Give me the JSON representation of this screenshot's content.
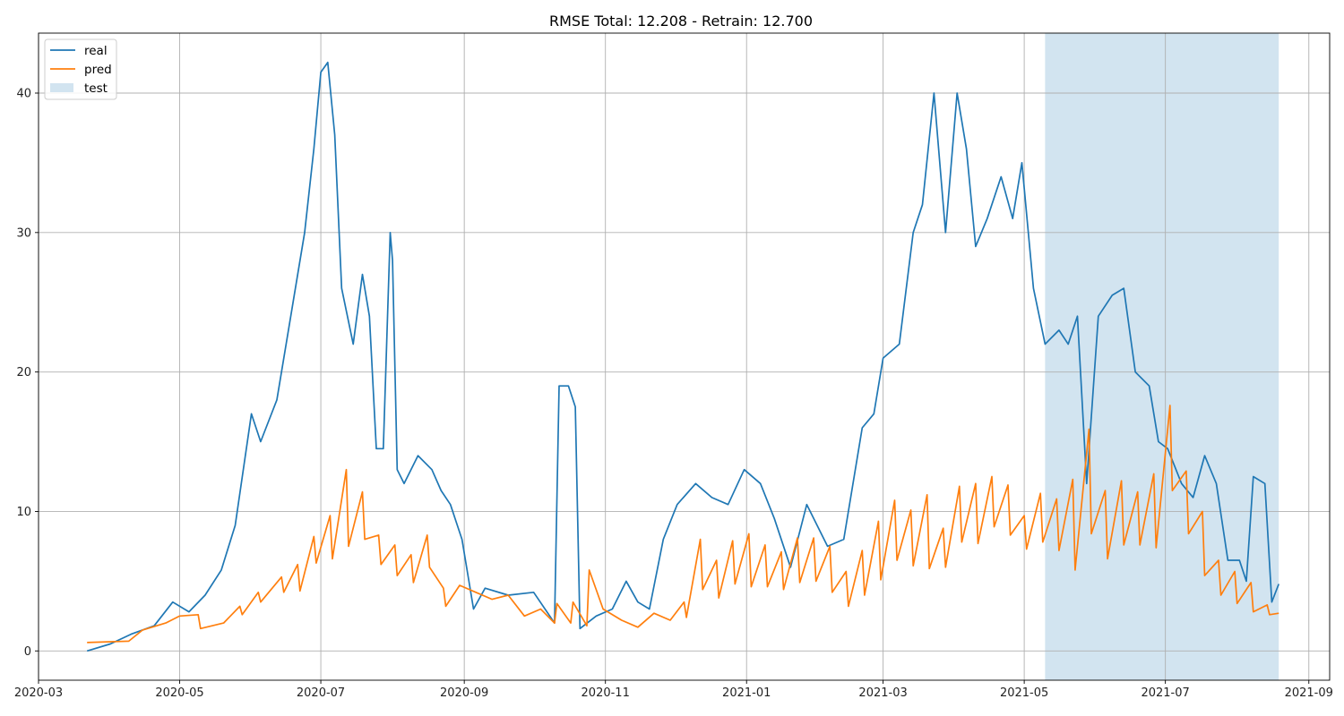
{
  "chart_data": {
    "type": "line",
    "title": "RMSE Total: 12.208 - Retrain: 12.700",
    "xlabel": "",
    "ylabel": "",
    "x_ticks": [
      "2020-03",
      "2020-05",
      "2020-07",
      "2020-09",
      "2020-11",
      "2021-01",
      "2021-03",
      "2021-05",
      "2021-07",
      "2021-09"
    ],
    "y_ticks": [
      0,
      10,
      20,
      30,
      40
    ],
    "xlim": [
      "2020-03-01",
      "2021-09-10"
    ],
    "ylim": [
      -2.1,
      44.3
    ],
    "grid": true,
    "legend_position": "top-left",
    "legend": [
      "real",
      "pred",
      "test"
    ],
    "colors": {
      "real": "#1f77b4",
      "pred": "#ff7f0e",
      "test": "#1f77b4"
    },
    "test_span": {
      "label": "test",
      "start": "2021-05-10",
      "end": "2021-08-19"
    },
    "series": [
      {
        "name": "real",
        "x": [
          "2020-03-22",
          "2020-04-01",
          "2020-04-10",
          "2020-04-20",
          "2020-04-28",
          "2020-05-05",
          "2020-05-12",
          "2020-05-19",
          "2020-05-25",
          "2020-06-01",
          "2020-06-05",
          "2020-06-12",
          "2020-06-19",
          "2020-06-24",
          "2020-06-28",
          "2020-07-01",
          "2020-07-04",
          "2020-07-07",
          "2020-07-10",
          "2020-07-15",
          "2020-07-19",
          "2020-07-22",
          "2020-07-25",
          "2020-07-28",
          "2020-07-31",
          "2020-08-01",
          "2020-08-03",
          "2020-08-06",
          "2020-08-12",
          "2020-08-18",
          "2020-08-22",
          "2020-08-26",
          "2020-08-31",
          "2020-09-05",
          "2020-09-10",
          "2020-09-20",
          "2020-10-01",
          "2020-10-10",
          "2020-10-12",
          "2020-10-16",
          "2020-10-19",
          "2020-10-21",
          "2020-10-28",
          "2020-11-04",
          "2020-11-10",
          "2020-11-15",
          "2020-11-20",
          "2020-11-26",
          "2020-12-02",
          "2020-12-10",
          "2020-12-17",
          "2020-12-24",
          "2020-12-31",
          "2021-01-07",
          "2021-01-13",
          "2021-01-20",
          "2021-01-27",
          "2021-02-05",
          "2021-02-12",
          "2021-02-20",
          "2021-02-25",
          "2021-03-01",
          "2021-03-08",
          "2021-03-14",
          "2021-03-18",
          "2021-03-23",
          "2021-03-28",
          "2021-04-02",
          "2021-04-06",
          "2021-04-10",
          "2021-04-15",
          "2021-04-21",
          "2021-04-26",
          "2021-04-30",
          "2021-05-05",
          "2021-05-10",
          "2021-05-16",
          "2021-05-20",
          "2021-05-24",
          "2021-05-28",
          "2021-06-02",
          "2021-06-08",
          "2021-06-13",
          "2021-06-18",
          "2021-06-24",
          "2021-06-28",
          "2021-07-02",
          "2021-07-08",
          "2021-07-13",
          "2021-07-18",
          "2021-07-23",
          "2021-07-28",
          "2021-08-02",
          "2021-08-05",
          "2021-08-08",
          "2021-08-13",
          "2021-08-16",
          "2021-08-19"
        ],
        "values": [
          0.0,
          0.5,
          1.2,
          1.8,
          3.5,
          2.8,
          4.0,
          5.8,
          9.0,
          17.0,
          15.0,
          18.0,
          25.0,
          30.0,
          36.0,
          41.5,
          42.2,
          37.0,
          26.0,
          22.0,
          27.0,
          24.0,
          14.5,
          14.5,
          30.0,
          28.0,
          13.0,
          12.0,
          14.0,
          13.0,
          11.5,
          10.5,
          8.0,
          3.0,
          4.5,
          4.0,
          4.2,
          2.0,
          19.0,
          19.0,
          17.5,
          1.6,
          2.5,
          3.0,
          5.0,
          3.5,
          3.0,
          8.0,
          10.5,
          12.0,
          11.0,
          10.5,
          13.0,
          12.0,
          9.5,
          6.0,
          10.5,
          7.5,
          8.0,
          16.0,
          17.0,
          21.0,
          22.0,
          30.0,
          32.0,
          40.0,
          30.0,
          40.0,
          36.0,
          29.0,
          31.0,
          34.0,
          31.0,
          35.0,
          26.0,
          22.0,
          23.0,
          22.0,
          24.0,
          12.0,
          24.0,
          25.5,
          26.0,
          20.0,
          19.0,
          15.0,
          14.5,
          12.0,
          11.0,
          14.0,
          12.0,
          6.5,
          6.5,
          5.0,
          12.5,
          12.0,
          3.5,
          4.8
        ]
      },
      {
        "name": "pred",
        "x": [
          "2020-03-22",
          "2020-04-09",
          "2020-04-15",
          "2020-04-25",
          "2020-05-01",
          "2020-05-09",
          "2020-05-10",
          "2020-05-20",
          "2020-05-27",
          "2020-05-28",
          "2020-06-04",
          "2020-06-05",
          "2020-06-14",
          "2020-06-15",
          "2020-06-21",
          "2020-06-22",
          "2020-06-28",
          "2020-06-29",
          "2020-07-05",
          "2020-07-06",
          "2020-07-12",
          "2020-07-13",
          "2020-07-19",
          "2020-07-20",
          "2020-07-26",
          "2020-07-27",
          "2020-08-02",
          "2020-08-03",
          "2020-08-09",
          "2020-08-10",
          "2020-08-16",
          "2020-08-17",
          "2020-08-23",
          "2020-08-24",
          "2020-08-30",
          "2020-09-06",
          "2020-09-13",
          "2020-09-20",
          "2020-09-27",
          "2020-10-04",
          "2020-10-10",
          "2020-10-11",
          "2020-10-17",
          "2020-10-18",
          "2020-10-24",
          "2020-10-25",
          "2020-10-31",
          "2020-11-08",
          "2020-11-15",
          "2020-11-22",
          "2020-11-29",
          "2020-12-05",
          "2020-12-06",
          "2020-12-12",
          "2020-12-13",
          "2020-12-19",
          "2020-12-20",
          "2020-12-26",
          "2020-12-27",
          "2021-01-02",
          "2021-01-03",
          "2021-01-09",
          "2021-01-10",
          "2021-01-16",
          "2021-01-17",
          "2021-01-23",
          "2021-01-24",
          "2021-01-30",
          "2021-01-31",
          "2021-02-06",
          "2021-02-07",
          "2021-02-13",
          "2021-02-14",
          "2021-02-20",
          "2021-02-21",
          "2021-02-27",
          "2021-02-28",
          "2021-03-06",
          "2021-03-07",
          "2021-03-13",
          "2021-03-14",
          "2021-03-20",
          "2021-03-21",
          "2021-03-27",
          "2021-03-28",
          "2021-04-03",
          "2021-04-04",
          "2021-04-10",
          "2021-04-11",
          "2021-04-17",
          "2021-04-18",
          "2021-04-24",
          "2021-04-25",
          "2021-05-01",
          "2021-05-02",
          "2021-05-08",
          "2021-05-09",
          "2021-05-15",
          "2021-05-16",
          "2021-05-22",
          "2021-05-23",
          "2021-05-29",
          "2021-05-30",
          "2021-06-05",
          "2021-06-06",
          "2021-06-12",
          "2021-06-13",
          "2021-06-19",
          "2021-06-20",
          "2021-06-26",
          "2021-06-27",
          "2021-07-03",
          "2021-07-04",
          "2021-07-10",
          "2021-07-11",
          "2021-07-17",
          "2021-07-18",
          "2021-07-24",
          "2021-07-25",
          "2021-07-31",
          "2021-08-01",
          "2021-08-07",
          "2021-08-08",
          "2021-08-14",
          "2021-08-15",
          "2021-08-19"
        ],
        "values": [
          0.6,
          0.7,
          1.5,
          2.0,
          2.5,
          2.6,
          1.6,
          2.0,
          3.2,
          2.6,
          4.2,
          3.5,
          5.3,
          4.2,
          6.2,
          4.3,
          8.2,
          6.3,
          9.7,
          6.6,
          13.0,
          7.5,
          11.4,
          8.0,
          8.3,
          6.2,
          7.6,
          5.4,
          6.9,
          4.9,
          8.3,
          6.0,
          4.5,
          3.2,
          4.7,
          4.2,
          3.7,
          4.0,
          2.5,
          3.0,
          2.0,
          3.4,
          2.0,
          3.5,
          1.8,
          5.8,
          3.0,
          2.2,
          1.7,
          2.7,
          2.2,
          3.5,
          2.4,
          8.0,
          4.4,
          6.5,
          3.8,
          7.9,
          4.8,
          8.4,
          4.6,
          7.6,
          4.6,
          7.1,
          4.4,
          8.1,
          4.9,
          8.1,
          5.0,
          7.5,
          4.2,
          5.7,
          3.2,
          7.2,
          4.0,
          9.3,
          5.1,
          10.8,
          6.5,
          10.1,
          6.1,
          11.2,
          5.9,
          8.8,
          6.0,
          11.8,
          7.8,
          12.0,
          7.7,
          12.5,
          8.9,
          11.9,
          8.3,
          9.7,
          7.3,
          11.3,
          7.8,
          10.9,
          7.2,
          12.3,
          5.8,
          15.9,
          8.4,
          11.5,
          6.6,
          12.2,
          7.6,
          11.4,
          7.6,
          12.7,
          7.4,
          17.6,
          11.5,
          12.9,
          8.4,
          10.0,
          5.4,
          6.5,
          4.0,
          5.7,
          3.4,
          4.9,
          2.8,
          3.3,
          2.6,
          2.7
        ]
      }
    ]
  }
}
